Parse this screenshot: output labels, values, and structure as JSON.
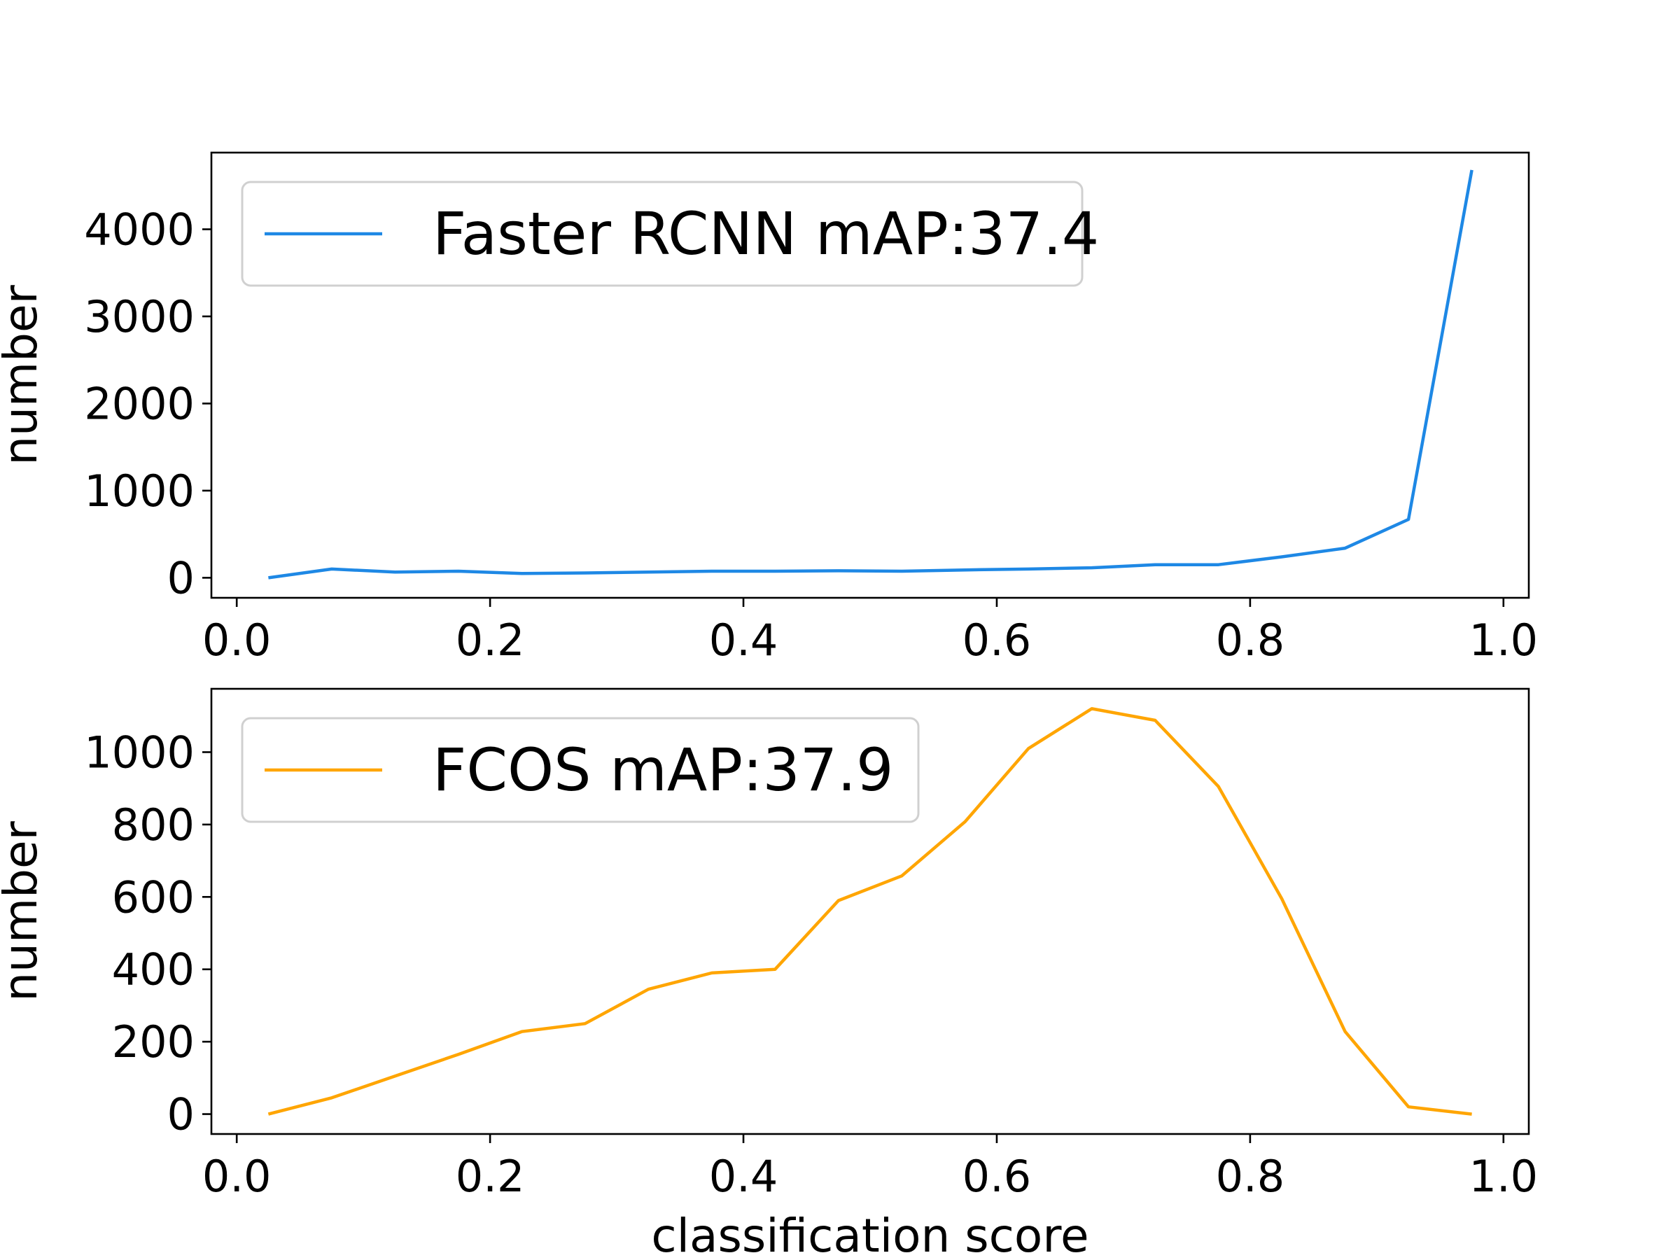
{
  "chart_data": [
    {
      "type": "line",
      "xlabel": "",
      "ylabel": "number",
      "xlim": [
        -0.02,
        1.02
      ],
      "ylim": [
        -230,
        4880
      ],
      "xticks": [
        0.0,
        0.2,
        0.4,
        0.6,
        0.8,
        1.0
      ],
      "xtick_labels": [
        "0.0",
        "0.2",
        "0.4",
        "0.6",
        "0.8",
        "1.0"
      ],
      "yticks": [
        0,
        1000,
        2000,
        3000,
        4000
      ],
      "ytick_labels": [
        "0",
        "1000",
        "2000",
        "3000",
        "4000"
      ],
      "grid": false,
      "legend_position": "upper-left",
      "series": [
        {
          "name": "Faster RCNN mAP:37.4",
          "color": "#1e88e5",
          "x": [
            0.025,
            0.075,
            0.125,
            0.175,
            0.225,
            0.275,
            0.325,
            0.375,
            0.425,
            0.475,
            0.525,
            0.575,
            0.625,
            0.675,
            0.725,
            0.775,
            0.825,
            0.875,
            0.925,
            0.975
          ],
          "y": [
            0,
            100,
            65,
            75,
            50,
            55,
            65,
            75,
            75,
            80,
            75,
            90,
            100,
            115,
            150,
            150,
            240,
            340,
            670,
            4680
          ]
        }
      ]
    },
    {
      "type": "line",
      "xlabel": "classification score",
      "ylabel": "number",
      "xlim": [
        -0.02,
        1.02
      ],
      "ylim": [
        -55,
        1175
      ],
      "xticks": [
        0.0,
        0.2,
        0.4,
        0.6,
        0.8,
        1.0
      ],
      "xtick_labels": [
        "0.0",
        "0.2",
        "0.4",
        "0.6",
        "0.8",
        "1.0"
      ],
      "yticks": [
        0,
        200,
        400,
        600,
        800,
        1000
      ],
      "ytick_labels": [
        "0",
        "200",
        "400",
        "600",
        "800",
        "1000"
      ],
      "grid": false,
      "legend_position": "upper-left",
      "series": [
        {
          "name": "FCOS mAP:37.9",
          "color": "#ffa500",
          "x": [
            0.025,
            0.075,
            0.125,
            0.175,
            0.225,
            0.275,
            0.325,
            0.375,
            0.425,
            0.475,
            0.525,
            0.575,
            0.625,
            0.675,
            0.725,
            0.775,
            0.825,
            0.875,
            0.925,
            0.975
          ],
          "y": [
            0,
            45,
            105,
            165,
            228,
            250,
            345,
            390,
            400,
            590,
            658,
            808,
            1010,
            1120,
            1088,
            905,
            595,
            228,
            20,
            0
          ]
        }
      ]
    }
  ]
}
